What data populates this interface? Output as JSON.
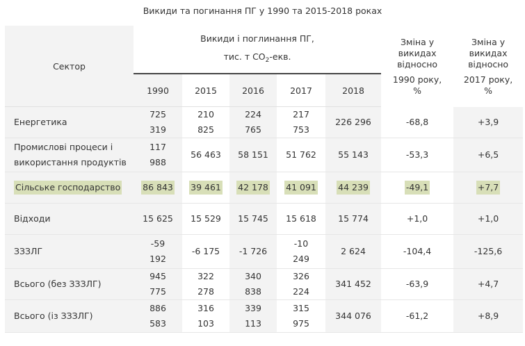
{
  "title": "Викиди та погинання ПГ у 1990 та 2015-2018 роках",
  "header": {
    "sector": "Сектор",
    "emissions_line1": "Викиди і поглинання ПГ,",
    "emissions_unit_prefix": "тис. т CO",
    "emissions_unit_sub": "2",
    "emissions_unit_suffix": "-екв.",
    "years": [
      "1990",
      "2015",
      "2016",
      "2017",
      "2018"
    ],
    "change_1990_top": "Зміна у викидах відносно",
    "change_1990_bottom": "1990 року, %",
    "change_2017_top": "Зміна у викидах відносно",
    "change_2017_bottom": "2017 року, %"
  },
  "highlight_color": "#d8dfb8",
  "rows": [
    {
      "sector": "Енергетика",
      "y1990": "725 319",
      "y2015": "210 825",
      "y2016": "224 765",
      "y2017": "217 753",
      "y2018": "226 296",
      "ch1990": "-68,8",
      "ch2017": "+3,9"
    },
    {
      "sector": "Промислові процеси і використання продуктів",
      "y1990": "117 988",
      "y2015": "56 463",
      "y2016": "58 151",
      "y2017": "51 762",
      "y2018": "55 143",
      "ch1990": "-53,3",
      "ch2017": "+6,5"
    },
    {
      "sector": "Сільське господарство",
      "y1990": "86 843",
      "y2015": "39 461",
      "y2016": "42 178",
      "y2017": "41 091",
      "y2018": "44 239",
      "ch1990": "-49,1",
      "ch2017": "+7,7"
    },
    {
      "sector": "Відходи",
      "y1990": "15 625",
      "y2015": "15 529",
      "y2016": "15 745",
      "y2017": "15 618",
      "y2018": "15 774",
      "ch1990": "+1,0",
      "ch2017": "+1,0"
    },
    {
      "sector": "ЗЗЗЛГ",
      "y1990": "-59 192",
      "y2015": "-6 175",
      "y2016": "-1 726",
      "y2017": "-10 249",
      "y2018": "2 624",
      "ch1990": "-104,4",
      "ch2017": "-125,6"
    },
    {
      "sector": "Всього (без ЗЗЗЛГ)",
      "y1990": "945 775",
      "y2015": "322 278",
      "y2016": "340 838",
      "y2017": "326 224",
      "y2018": "341 452",
      "ch1990": "-63,9",
      "ch2017": "+4,7"
    },
    {
      "sector": "Всього (із ЗЗЗЛГ)",
      "y1990": "886 583",
      "y2015": "316 103",
      "y2016": "339 113",
      "y2017": "315 975",
      "y2018": "344 076",
      "ch1990": "-61,2",
      "ch2017": "+8,9"
    }
  ]
}
